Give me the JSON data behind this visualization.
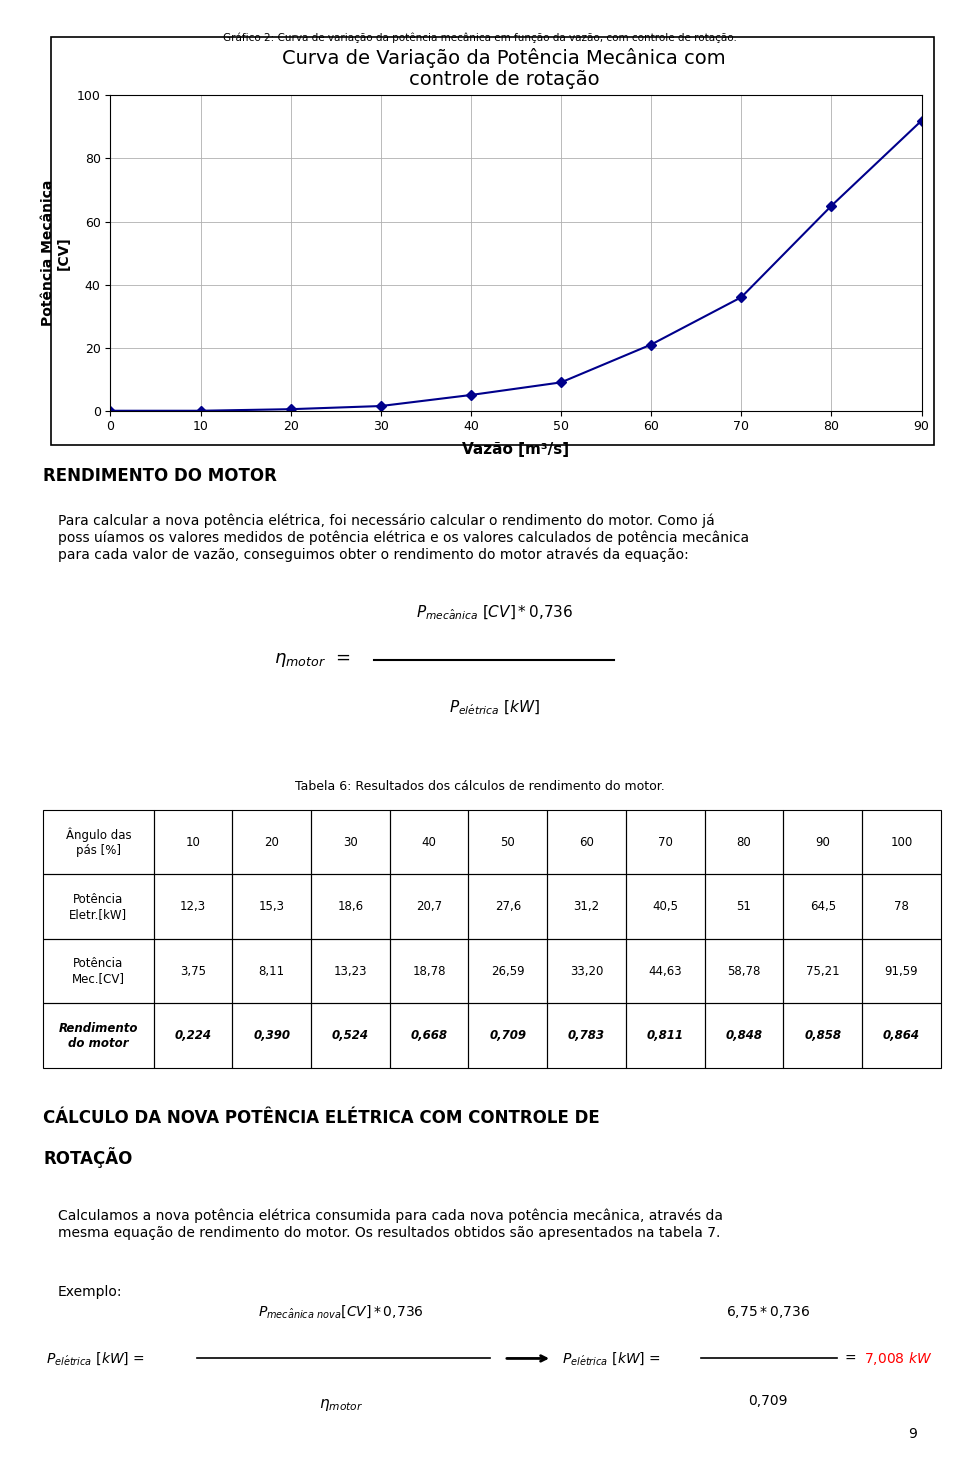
{
  "page_title": "Gráfico 2: Curva de variação da potência mecânica em função da vazão, com controle de rotação.",
  "chart_title_line1": "Curva de Variação da Potência Mecânica com",
  "chart_title_line2": "controle de rotação",
  "x_data_plot": [
    0,
    10,
    20,
    30,
    40,
    50,
    60,
    70,
    80,
    90
  ],
  "y_data_plot": [
    0.0,
    0.0,
    0.5,
    1.5,
    5.0,
    9.0,
    21.0,
    36.0,
    65.0,
    92.0
  ],
  "xlabel": "Vazão [m³/s]",
  "ylabel": "Potência Mecânica\n[CV]",
  "xlim": [
    0,
    90
  ],
  "ylim": [
    0,
    100
  ],
  "xticks": [
    0,
    10,
    20,
    30,
    40,
    50,
    60,
    70,
    80,
    90
  ],
  "yticks": [
    0,
    20,
    40,
    60,
    80,
    100
  ],
  "line_color": "#00008B",
  "marker_color": "#00008B",
  "section1_title": "RENDIMENTO DO MOTOR",
  "table6_caption": "Tabela 6: Resultados dos cálculos de rendimento do motor.",
  "table6_header_label": "Ângulo das\npás [%]",
  "table6_header_vals": [
    "10",
    "20",
    "30",
    "40",
    "50",
    "60",
    "70",
    "80",
    "90",
    "100"
  ],
  "table6_row1_label": "Potência\nEletr.[kW]",
  "table6_row1": [
    "12,3",
    "15,3",
    "18,6",
    "20,7",
    "27,6",
    "31,2",
    "40,5",
    "51",
    "64,5",
    "78"
  ],
  "table6_row2_label": "Potência\nMec.[CV]",
  "table6_row2": [
    "3,75",
    "8,11",
    "13,23",
    "18,78",
    "26,59",
    "33,20",
    "44,63",
    "58,78",
    "75,21",
    "91,59"
  ],
  "table6_row3_label": "Rendimento\ndo motor",
  "table6_row3": [
    "0,224",
    "0,390",
    "0,524",
    "0,668",
    "0,709",
    "0,783",
    "0,811",
    "0,848",
    "0,858",
    "0,864"
  ],
  "section2_title_line1": "CÁLCULO DA NOVA POTÊNCIA ELÉTRICA COM CONTROLE DE",
  "section2_title_line2": "ROTAÇÃO",
  "page_number": "9",
  "background_color": "#ffffff"
}
